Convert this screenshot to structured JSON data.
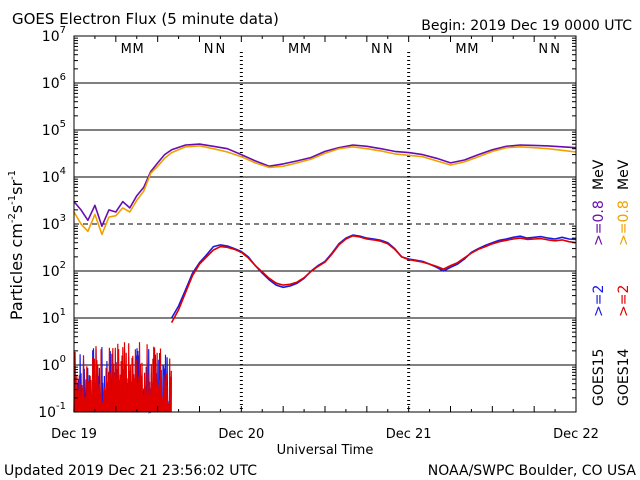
{
  "header": {
    "title": "GOES Electron Flux (5 minute data)",
    "begin": "Begin: 2019 Dec 19 0000 UTC"
  },
  "footer": {
    "updated": "Updated 2019 Dec 21 23:56:02 UTC",
    "credit": "NOAA/SWPC Boulder, CO USA"
  },
  "chart_data": {
    "type": "line",
    "title": "GOES Electron Flux (5 minute data)",
    "xlabel": "Universal Time",
    "ylabel_parts": [
      "Particles cm",
      "-2",
      "s",
      "-1",
      "sr",
      "-1"
    ],
    "yscale": "log",
    "ylim": [
      0.1,
      10000000
    ],
    "y_tick_labels": [
      {
        "base": "10",
        "exp": "-1",
        "value": 0.1
      },
      {
        "base": "10",
        "exp": "0",
        "value": 1
      },
      {
        "base": "10",
        "exp": "1",
        "value": 10
      },
      {
        "base": "10",
        "exp": "2",
        "value": 100
      },
      {
        "base": "10",
        "exp": "3",
        "value": 1000
      },
      {
        "base": "10",
        "exp": "4",
        "value": 10000
      },
      {
        "base": "10",
        "exp": "5",
        "value": 100000
      },
      {
        "base": "10",
        "exp": "6",
        "value": 1000000
      },
      {
        "base": "10",
        "exp": "7",
        "value": 10000000
      }
    ],
    "xlim": [
      0,
      72
    ],
    "x_ticks": [
      {
        "label": "Dec 19",
        "hour": 0
      },
      {
        "label": "Dec 20",
        "hour": 24
      },
      {
        "label": "Dec 21",
        "hour": 48
      },
      {
        "label": "Dec 22",
        "hour": 72
      }
    ],
    "day_boundary_hours": [
      24,
      48
    ],
    "threshold_dashed": 1000,
    "grid": true,
    "marker_rows": [
      {
        "label": "M",
        "hour": 7.5,
        "color": "#e00000"
      },
      {
        "label": "M",
        "hour": 9.2,
        "color": "#1a1ae0"
      },
      {
        "label": "N",
        "hour": 19.3,
        "color": "#e00000"
      },
      {
        "label": "N",
        "hour": 21.0,
        "color": "#1a1ae0"
      },
      {
        "label": "M",
        "hour": 31.5,
        "color": "#e00000"
      },
      {
        "label": "M",
        "hour": 33.2,
        "color": "#1a1ae0"
      },
      {
        "label": "N",
        "hour": 43.3,
        "color": "#e00000"
      },
      {
        "label": "N",
        "hour": 45.0,
        "color": "#1a1ae0"
      },
      {
        "label": "M",
        "hour": 55.5,
        "color": "#e00000"
      },
      {
        "label": "M",
        "hour": 57.2,
        "color": "#1a1ae0"
      },
      {
        "label": "N",
        "hour": 67.3,
        "color": "#e00000"
      },
      {
        "label": "N",
        "hour": 69.0,
        "color": "#1a1ae0"
      }
    ],
    "legend": {
      "placement": "right",
      "groups": [
        {
          "satellite": "GOES15",
          "entries": [
            {
              "text": ">=2",
              "color": "#1a1ae0"
            },
            {
              "text": ">=0.8",
              "color": "#6a0db0"
            }
          ]
        },
        {
          "satellite": "GOES14",
          "entries": [
            {
              "text": ">=2",
              "color": "#e00000"
            },
            {
              "text": ">=0.8",
              "color": "#f0a000"
            }
          ]
        }
      ],
      "unit": "MeV"
    },
    "series": [
      {
        "name": "GOES15 >=0.8 MeV",
        "color": "#6a0db0",
        "x": [
          0,
          1,
          2,
          3,
          4,
          5,
          6,
          7,
          8,
          9,
          10,
          11,
          12,
          13,
          14,
          16,
          18,
          20,
          22,
          24,
          26,
          28,
          30,
          32,
          34,
          36,
          38,
          40,
          42,
          44,
          46,
          48,
          50,
          52,
          54,
          56,
          58,
          60,
          62,
          64,
          66,
          68,
          70,
          72
        ],
        "y": [
          3000,
          2000,
          1200,
          2500,
          900,
          2000,
          1800,
          3000,
          2200,
          4000,
          6000,
          13000,
          20000,
          30000,
          38000,
          48000,
          50000,
          45000,
          40000,
          30000,
          22000,
          17000,
          19000,
          22000,
          26000,
          35000,
          42000,
          48000,
          45000,
          40000,
          35000,
          33000,
          30000,
          25000,
          20000,
          23000,
          30000,
          38000,
          45000,
          48000,
          47000,
          46000,
          44000,
          42000
        ]
      },
      {
        "name": "GOES14 >=0.8 MeV",
        "color": "#f0a000",
        "x": [
          0,
          1,
          2,
          3,
          4,
          5,
          6,
          7,
          8,
          9,
          10,
          11,
          12,
          13,
          14,
          16,
          18,
          20,
          22,
          24,
          26,
          28,
          30,
          32,
          34,
          36,
          38,
          40,
          42,
          44,
          46,
          48,
          50,
          52,
          54,
          56,
          58,
          60,
          62,
          64,
          66,
          68,
          70,
          72
        ],
        "y": [
          1800,
          1000,
          700,
          1600,
          600,
          1400,
          1500,
          2200,
          1800,
          3200,
          5000,
          12000,
          17000,
          25000,
          33000,
          44000,
          46000,
          40000,
          34000,
          27000,
          20000,
          16000,
          17000,
          20000,
          24000,
          32000,
          40000,
          44000,
          40000,
          36000,
          31000,
          29000,
          27000,
          22000,
          18000,
          21000,
          27000,
          35000,
          42000,
          44000,
          42000,
          40000,
          37000,
          34000
        ]
      },
      {
        "name": "GOES15 >=2 MeV",
        "color": "#1a1ae0",
        "x": [
          14,
          15,
          16,
          17,
          18,
          19,
          20,
          21,
          22,
          23,
          24,
          25,
          26,
          27,
          28,
          29,
          30,
          31,
          32,
          33,
          34,
          35,
          36,
          37,
          38,
          39,
          40,
          41,
          42,
          43,
          44,
          45,
          46,
          47,
          48,
          49,
          50,
          51,
          52,
          53,
          54,
          55,
          56,
          57,
          58,
          59,
          60,
          61,
          62,
          63,
          64,
          65,
          66,
          67,
          68,
          69,
          70,
          71,
          72
        ],
        "y": [
          10,
          18,
          40,
          90,
          150,
          220,
          330,
          360,
          340,
          300,
          260,
          200,
          130,
          90,
          65,
          50,
          45,
          48,
          55,
          70,
          100,
          130,
          160,
          240,
          380,
          500,
          580,
          550,
          500,
          480,
          450,
          400,
          300,
          200,
          180,
          170,
          160,
          140,
          120,
          100,
          120,
          140,
          180,
          250,
          300,
          350,
          400,
          450,
          480,
          520,
          550,
          500,
          520,
          540,
          500,
          480,
          520,
          480,
          470
        ]
      },
      {
        "name": "GOES14 >=2 MeV",
        "color": "#e00000",
        "x": [
          14,
          15,
          16,
          17,
          18,
          19,
          20,
          21,
          22,
          23,
          24,
          25,
          26,
          27,
          28,
          29,
          30,
          31,
          32,
          33,
          34,
          35,
          36,
          37,
          38,
          39,
          40,
          41,
          42,
          43,
          44,
          45,
          46,
          47,
          48,
          49,
          50,
          51,
          52,
          53,
          54,
          55,
          56,
          57,
          58,
          59,
          60,
          61,
          62,
          63,
          64,
          65,
          66,
          67,
          68,
          69,
          70,
          71,
          72
        ],
        "y": [
          8,
          15,
          35,
          80,
          140,
          200,
          280,
          330,
          320,
          290,
          250,
          190,
          130,
          95,
          70,
          55,
          50,
          52,
          58,
          72,
          98,
          125,
          155,
          230,
          360,
          480,
          560,
          530,
          480,
          460,
          430,
          380,
          290,
          200,
          175,
          165,
          155,
          140,
          125,
          110,
          130,
          150,
          190,
          240,
          290,
          330,
          380,
          420,
          450,
          480,
          500,
          470,
          480,
          490,
          460,
          440,
          460,
          420,
          400
        ]
      }
    ],
    "low_noise_region_hours": [
      0,
      14
    ],
    "low_noise_series": [
      {
        "name": "GOES15 >=2 MeV noise",
        "color": "#1a1ae0"
      },
      {
        "name": "GOES14 >=2 MeV noise",
        "color": "#e00000"
      }
    ]
  }
}
